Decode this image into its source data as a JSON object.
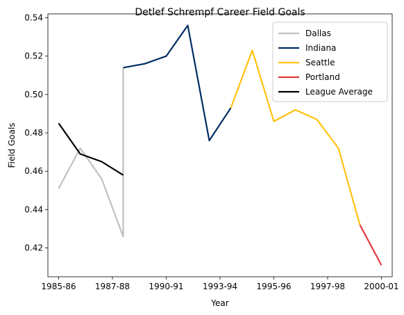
{
  "chart_data": {
    "type": "line",
    "title": "Detlef Schrempf Career Field Goals",
    "xlabel": "Year",
    "ylabel": "Field Goals",
    "xticks": [
      "1985-86",
      "1987-88",
      "1990-91",
      "1993-94",
      "1995-96",
      "1997-98",
      "2000-01"
    ],
    "yticks": [
      "0.42",
      "0.44",
      "0.46",
      "0.48",
      "0.50",
      "0.52",
      "0.54"
    ],
    "xlim": [
      -0.5,
      15.5
    ],
    "ylim": [
      0.405,
      0.542
    ],
    "grid": false,
    "legend_position": "top-right",
    "series": [
      {
        "name": "Dallas",
        "color": "#c0c0c0",
        "points": [
          [
            0,
            0.451
          ],
          [
            1,
            0.472
          ],
          [
            2,
            0.456
          ],
          [
            3,
            0.426
          ],
          [
            3,
            0.514
          ]
        ]
      },
      {
        "name": "Indiana",
        "color": "#002d62",
        "points": [
          [
            3,
            0.514
          ],
          [
            4,
            0.516
          ],
          [
            5,
            0.52
          ],
          [
            6,
            0.536
          ],
          [
            7,
            0.476
          ],
          [
            8,
            0.493
          ]
        ]
      },
      {
        "name": "Seattle",
        "color": "#ffc20e",
        "points": [
          [
            8,
            0.493
          ],
          [
            9,
            0.523
          ],
          [
            10,
            0.486
          ],
          [
            11,
            0.492
          ],
          [
            12,
            0.487
          ],
          [
            13,
            0.472
          ],
          [
            14,
            0.432
          ]
        ]
      },
      {
        "name": "Portland",
        "color": "#e03a3e",
        "points": [
          [
            14,
            0.432
          ],
          [
            15,
            0.411
          ]
        ]
      },
      {
        "name": "League Average",
        "color": "#000000",
        "points": [
          [
            0,
            0.485
          ],
          [
            1,
            0.469
          ],
          [
            2,
            0.465
          ],
          [
            3,
            0.458
          ]
        ]
      }
    ]
  }
}
